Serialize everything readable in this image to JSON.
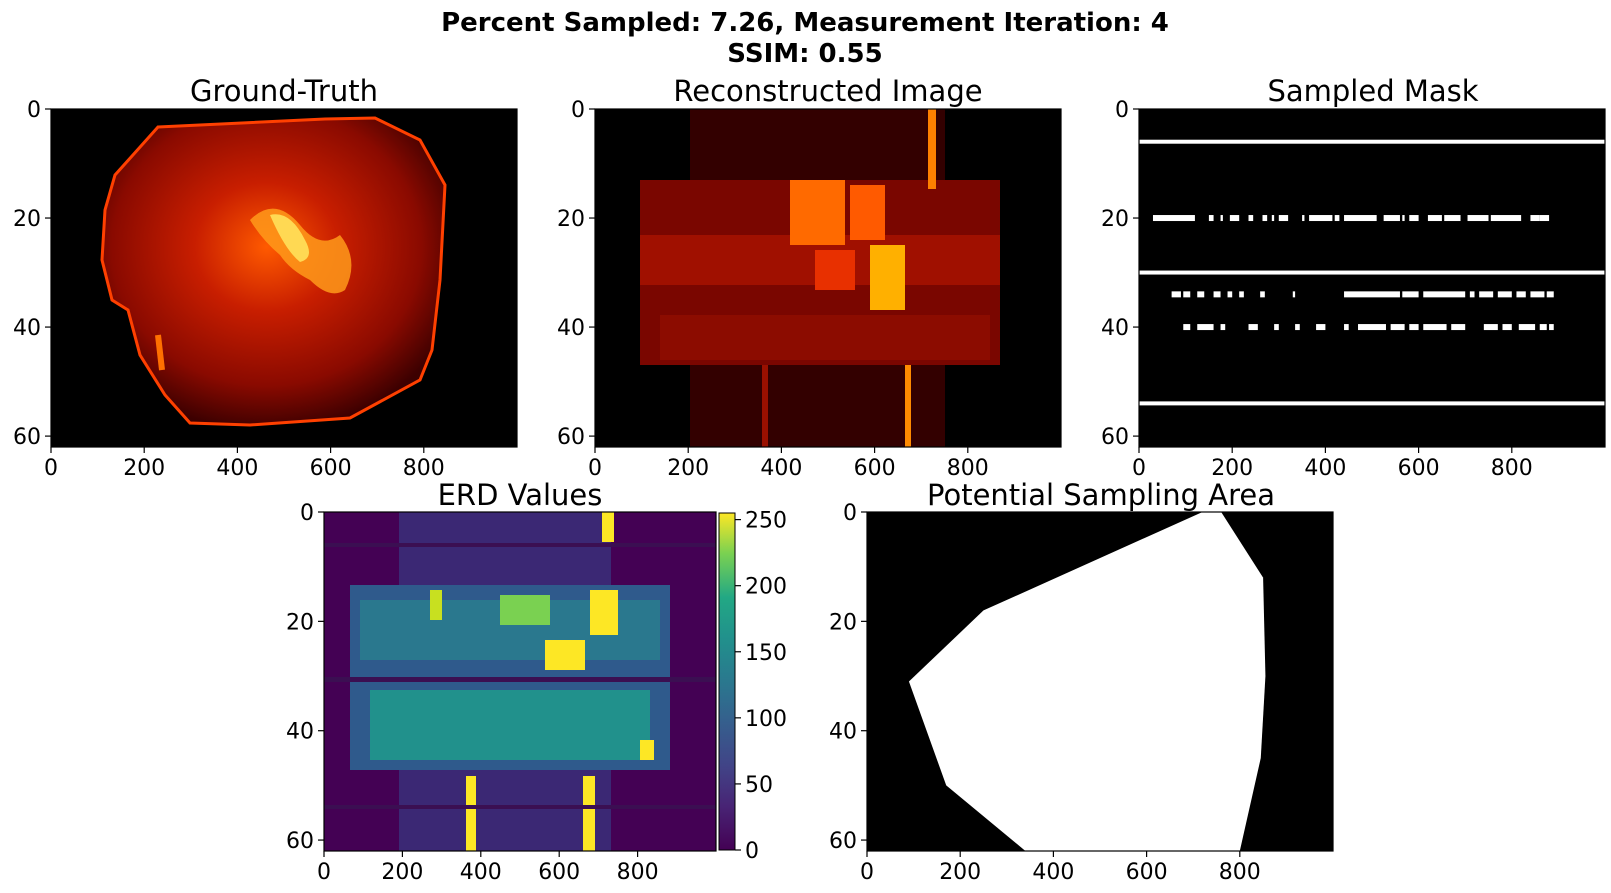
{
  "figure": {
    "title_line1": "Percent Sampled: 7.26, Measurement Iteration: 4",
    "title_line2": "SSIM: 0.55"
  },
  "chart_data": [
    {
      "type": "heatmap",
      "title": "Ground-Truth",
      "colormap": "hot",
      "xlim": [
        0,
        1000
      ],
      "ylim": [
        62,
        0
      ],
      "xticks": [
        0,
        200,
        400,
        600,
        800
      ],
      "yticks": [
        0,
        20,
        40,
        60
      ]
    },
    {
      "type": "heatmap",
      "title": "Reconstructed Image",
      "colormap": "hot",
      "xlim": [
        0,
        1000
      ],
      "ylim": [
        62,
        0
      ],
      "xticks": [
        0,
        200,
        400,
        600,
        800
      ],
      "yticks": [
        0,
        20,
        40,
        60
      ]
    },
    {
      "type": "heatmap",
      "title": "Sampled Mask",
      "colormap": "gray",
      "xlim": [
        0,
        1000
      ],
      "ylim": [
        62,
        0
      ],
      "xticks": [
        0,
        200,
        400,
        600,
        800
      ],
      "yticks": [
        0,
        20,
        40,
        60
      ],
      "full_rows": [
        6,
        30,
        54
      ],
      "partial_rows": [
        20,
        34,
        40
      ]
    },
    {
      "type": "heatmap",
      "title": "ERD Values",
      "colormap": "viridis",
      "xlim": [
        0,
        1000
      ],
      "ylim": [
        62,
        0
      ],
      "xticks": [
        0,
        200,
        400,
        600,
        800
      ],
      "yticks": [
        0,
        20,
        40,
        60
      ],
      "colorbar": {
        "range": [
          0,
          255
        ],
        "ticks": [
          0,
          50,
          100,
          150,
          200,
          250
        ]
      }
    },
    {
      "type": "heatmap",
      "title": "Potential Sampling Area",
      "colormap": "gray",
      "xlim": [
        0,
        1000
      ],
      "ylim": [
        62,
        0
      ],
      "xticks": [
        0,
        200,
        400,
        600,
        800
      ],
      "yticks": [
        0,
        20,
        40,
        60
      ],
      "region_polygon": [
        [
          720,
          0
        ],
        [
          760,
          0
        ],
        [
          850,
          12
        ],
        [
          855,
          30
        ],
        [
          845,
          45
        ],
        [
          800,
          62
        ],
        [
          340,
          62
        ],
        [
          170,
          50
        ],
        [
          90,
          31
        ],
        [
          250,
          18
        ],
        [
          720,
          0
        ]
      ]
    }
  ]
}
